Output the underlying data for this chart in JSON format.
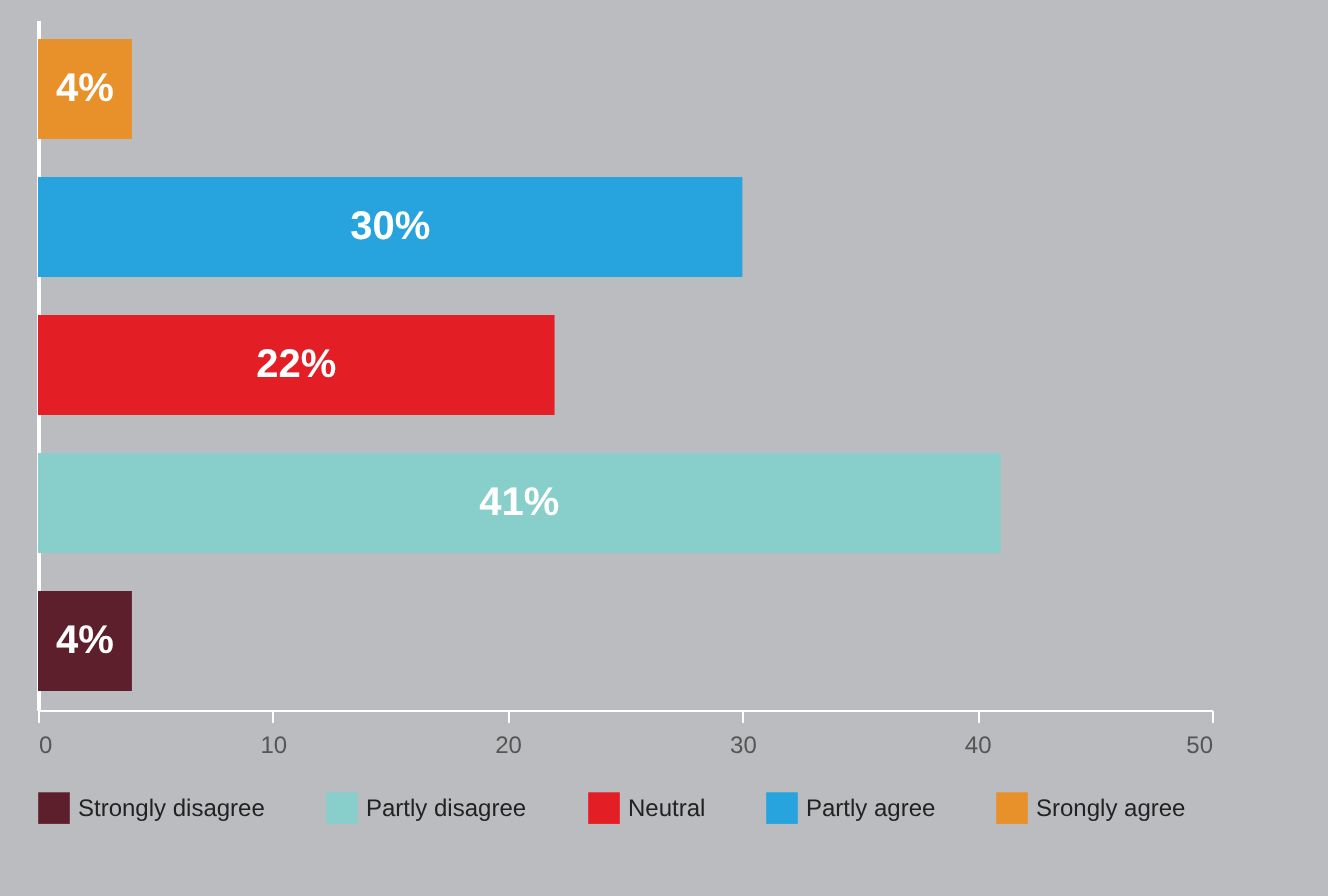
{
  "chart_data": {
    "type": "bar",
    "orientation": "horizontal",
    "categories": [
      null,
      null,
      null,
      null,
      null
    ],
    "series": [
      {
        "name": "Strongly disagree",
        "color": "#5e1f2d",
        "values": [
          null,
          null,
          null,
          null,
          4
        ],
        "value_labels": [
          null,
          null,
          null,
          null,
          "4%"
        ]
      },
      {
        "name": "Partly disagree",
        "color": "#88cfcb",
        "values": [
          null,
          null,
          null,
          41,
          null
        ],
        "value_labels": [
          null,
          null,
          null,
          "41%",
          null
        ]
      },
      {
        "name": "Neutral",
        "color": "#e31e25",
        "values": [
          null,
          null,
          22,
          null,
          null
        ],
        "value_labels": [
          null,
          null,
          "22%",
          null,
          null
        ]
      },
      {
        "name": "Partly agree",
        "color": "#27a3dd",
        "values": [
          null,
          30,
          null,
          null,
          null
        ],
        "value_labels": [
          null,
          "30%",
          null,
          null,
          null
        ]
      },
      {
        "name": "Srongly agree",
        "color": "#e8912a",
        "values": [
          4,
          null,
          null,
          null,
          null
        ],
        "value_labels": [
          "4%",
          null,
          null,
          null,
          null
        ]
      }
    ],
    "xlim": [
      0,
      50
    ],
    "xticks": [
      0,
      10,
      20,
      30,
      40,
      50
    ],
    "tick_labels": "x",
    "legend": "bottom"
  }
}
